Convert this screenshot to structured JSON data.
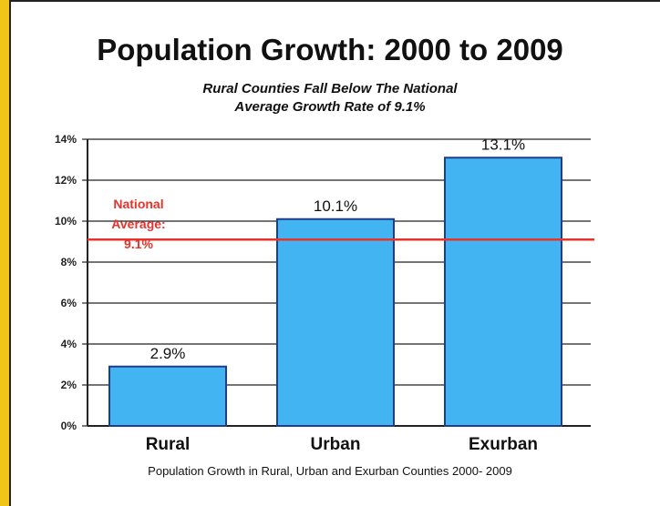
{
  "colors": {
    "bar": "#43b4f2",
    "bar_border": "#1f3d8a",
    "reference": "#e8332a",
    "grid": "#222222"
  },
  "chart_data": {
    "type": "bar",
    "title": "Population Growth: 2000 to 2009",
    "subtitle_line1": "Rural Counties Fall Below The National",
    "subtitle_line2": "Average Growth Rate of 9.1%",
    "caption": "Population Growth in Rural, Urban and Exurban Counties 2000- 2009",
    "categories": [
      "Rural",
      "Urban",
      "Exurban"
    ],
    "values": [
      2.9,
      10.1,
      13.1
    ],
    "data_labels": [
      "2.9%",
      "10.1%",
      "13.1%"
    ],
    "ylim": [
      0,
      14
    ],
    "yticks": [
      0,
      2,
      4,
      6,
      8,
      10,
      12,
      14
    ],
    "ytick_labels": [
      "0%",
      "2%",
      "4%",
      "6%",
      "8%",
      "10%",
      "12%",
      "14%"
    ],
    "grid": true,
    "reference_line": {
      "value": 9.1,
      "label_lines": [
        "National",
        "Average:",
        "9.1%"
      ]
    }
  }
}
